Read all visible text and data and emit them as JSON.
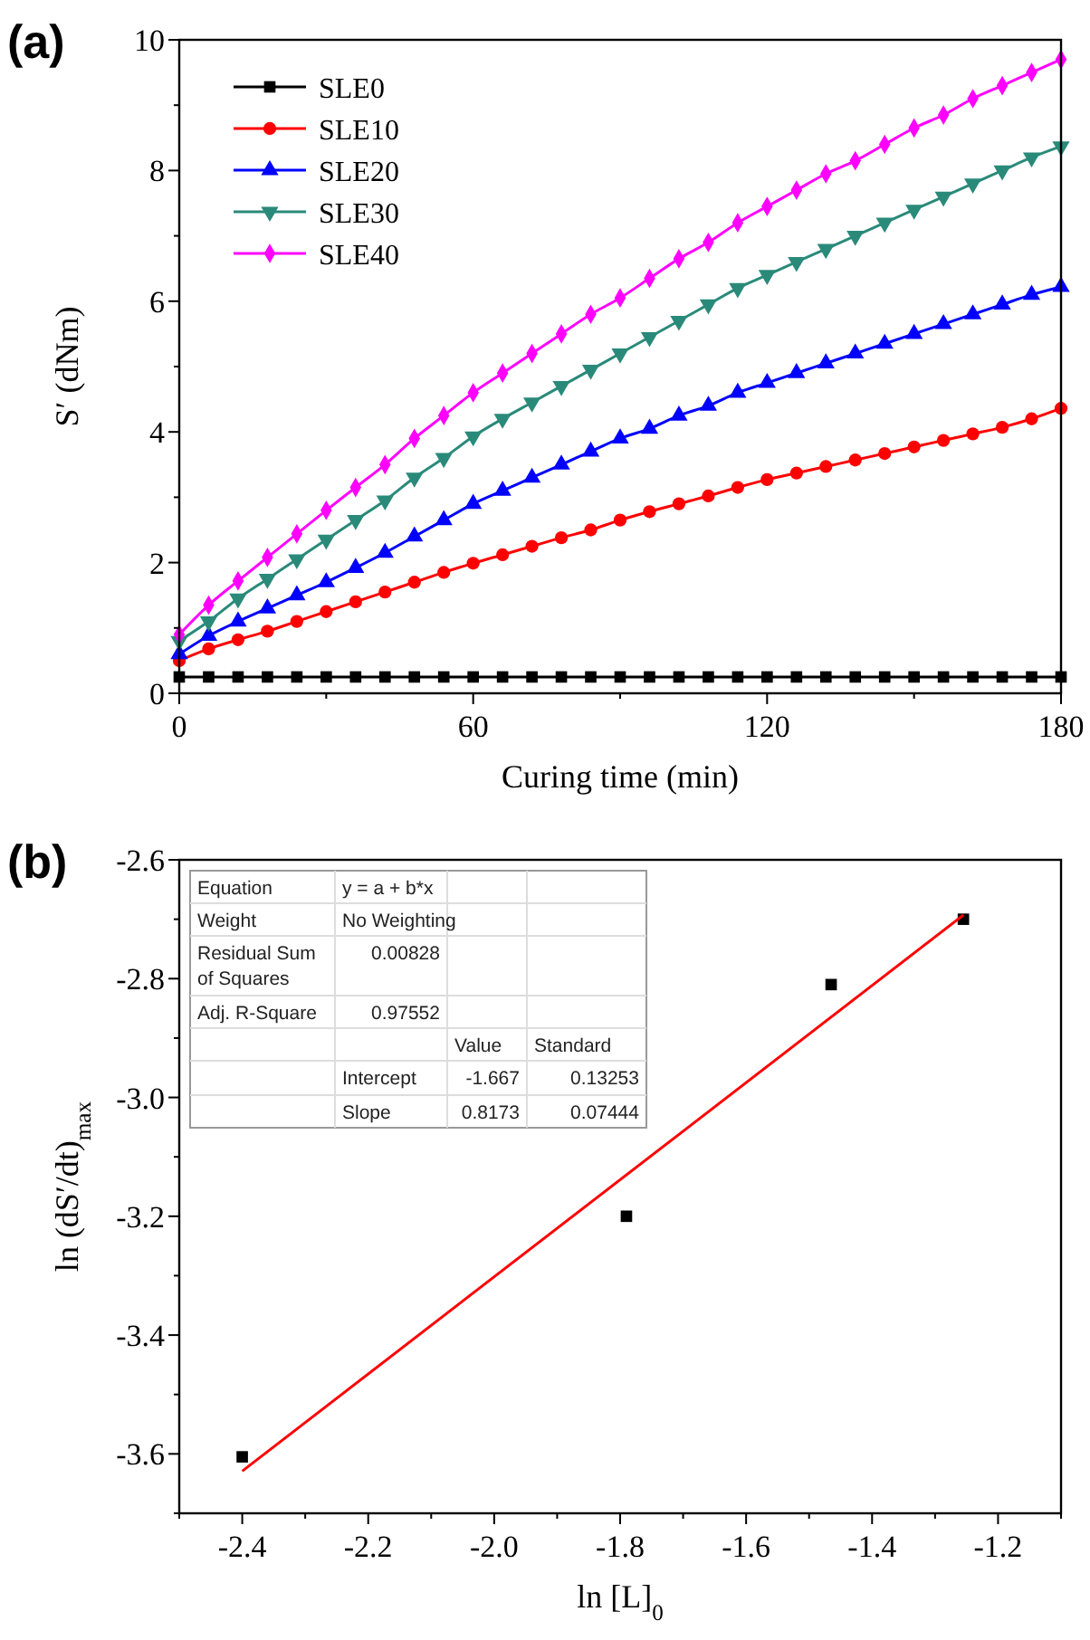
{
  "chart_data": [
    {
      "type": "line",
      "title": "(a)",
      "xlabel": "Curing time (min)",
      "ylabel": "S′ (dNm)",
      "x": [
        0,
        6,
        12,
        18,
        24,
        30,
        36,
        42,
        48,
        54,
        60,
        66,
        72,
        78,
        84,
        90,
        96,
        102,
        108,
        114,
        120,
        126,
        132,
        138,
        144,
        150,
        156,
        162,
        168,
        174,
        180
      ],
      "series": [
        {
          "name": "SLE0",
          "color": "#000000",
          "marker": "square",
          "values": [
            0.25,
            0.25,
            0.25,
            0.25,
            0.25,
            0.25,
            0.25,
            0.25,
            0.25,
            0.25,
            0.25,
            0.25,
            0.25,
            0.25,
            0.25,
            0.25,
            0.25,
            0.25,
            0.25,
            0.25,
            0.25,
            0.25,
            0.25,
            0.25,
            0.25,
            0.25,
            0.25,
            0.25,
            0.25,
            0.25,
            0.25
          ]
        },
        {
          "name": "SLE10",
          "color": "#ff0000",
          "marker": "circle",
          "values": [
            0.5,
            0.68,
            0.82,
            0.95,
            1.1,
            1.25,
            1.4,
            1.55,
            1.7,
            1.85,
            1.99,
            2.12,
            2.25,
            2.38,
            2.5,
            2.65,
            2.78,
            2.9,
            3.02,
            3.15,
            3.27,
            3.37,
            3.47,
            3.57,
            3.67,
            3.77,
            3.87,
            3.97,
            4.07,
            4.2,
            4.36
          ]
        },
        {
          "name": "SLE20",
          "color": "#0000ff",
          "marker": "triangle",
          "values": [
            0.6,
            0.88,
            1.1,
            1.3,
            1.5,
            1.7,
            1.92,
            2.15,
            2.4,
            2.65,
            2.9,
            3.1,
            3.3,
            3.5,
            3.7,
            3.9,
            4.05,
            4.25,
            4.4,
            4.6,
            4.75,
            4.9,
            5.05,
            5.2,
            5.35,
            5.5,
            5.65,
            5.8,
            5.95,
            6.1,
            6.22
          ]
        },
        {
          "name": "SLE30",
          "color": "#2a8a7a",
          "marker": "triangle-down",
          "values": [
            0.8,
            1.1,
            1.45,
            1.75,
            2.05,
            2.35,
            2.65,
            2.95,
            3.3,
            3.6,
            3.93,
            4.2,
            4.45,
            4.7,
            4.95,
            5.2,
            5.45,
            5.7,
            5.95,
            6.2,
            6.4,
            6.6,
            6.8,
            7.0,
            7.2,
            7.4,
            7.6,
            7.8,
            8.0,
            8.2,
            8.37
          ]
        },
        {
          "name": "SLE40",
          "color": "#ff00ff",
          "marker": "diamond",
          "values": [
            0.9,
            1.35,
            1.72,
            2.08,
            2.44,
            2.8,
            3.15,
            3.5,
            3.9,
            4.25,
            4.6,
            4.9,
            5.2,
            5.5,
            5.8,
            6.05,
            6.35,
            6.65,
            6.9,
            7.2,
            7.45,
            7.7,
            7.95,
            8.15,
            8.4,
            8.65,
            8.85,
            9.1,
            9.3,
            9.5,
            9.7
          ]
        }
      ],
      "xlim": [
        0,
        180
      ],
      "xticks": [
        0,
        {
          "value": 30,
          "label": null
        },
        60,
        {
          "value": 90,
          "label": null
        },
        120,
        {
          "value": 150,
          "label": null
        },
        180
      ],
      "ylim": [
        0,
        10
      ],
      "yticks": [
        0,
        {
          "value": 1,
          "label": null
        },
        2,
        {
          "value": 3,
          "label": null
        },
        4,
        {
          "value": 5,
          "label": null
        },
        6,
        {
          "value": 7,
          "label": null
        },
        8,
        {
          "value": 9,
          "label": null
        },
        10
      ],
      "legend": "top left"
    },
    {
      "type": "scatter",
      "title": "(b)",
      "xlabel": "ln [L]$_{0}$",
      "ylabel": "ln (dS′/dt)$_{max}$",
      "series": [
        {
          "color": "#000000",
          "marker": "square",
          "x": [
            -2.4,
            -1.79,
            -1.465,
            -1.255
          ],
          "values": [
            -3.605,
            -3.2,
            -2.81,
            -2.7
          ]
        },
        {
          "type": "line",
          "color": "#ff0000",
          "marker": "none",
          "x": [
            -2.4,
            -1.255
          ],
          "values": [
            -3.629,
            -2.693
          ]
        }
      ],
      "xlim": [
        -2.5,
        -1.1
      ],
      "xticks": [
        {
          "value": -2.5,
          "label": null
        },
        -2.4,
        {
          "value": -2.3,
          "label": null
        },
        -2.2,
        {
          "value": -2.1,
          "label": null
        },
        {
          "value": -2.0,
          "label": "-2.0"
        },
        {
          "value": -1.9,
          "label": null
        },
        -1.8,
        {
          "value": -1.7,
          "label": null
        },
        -1.6,
        {
          "value": -1.5,
          "label": null
        },
        -1.4,
        {
          "value": -1.3,
          "label": null
        },
        -1.2,
        {
          "value": -1.1,
          "label": null
        }
      ],
      "ylim": [
        -3.7,
        -2.6
      ],
      "yticks": [
        {
          "value": -3.7,
          "label": null
        },
        -3.6,
        {
          "value": -3.5,
          "label": null
        },
        -3.4,
        {
          "value": -3.3,
          "label": null
        },
        -3.2,
        {
          "value": -3.1,
          "label": null
        },
        {
          "value": -3.0,
          "label": "-3.0"
        },
        {
          "value": -2.9,
          "label": null
        },
        -2.8,
        {
          "value": -2.7,
          "label": null
        },
        -2.6
      ],
      "annotations": [
        "Equation",
        "y = a + b*x",
        "Weight",
        "No Weighting",
        "Residual Sum of Squares",
        "0.00828",
        "Adj. R-Square",
        "0.97552",
        "Value",
        "Standard",
        "Intercept",
        "-1.667",
        "0.13253",
        "Slope",
        "0.8173",
        "0.07444"
      ]
    }
  ]
}
